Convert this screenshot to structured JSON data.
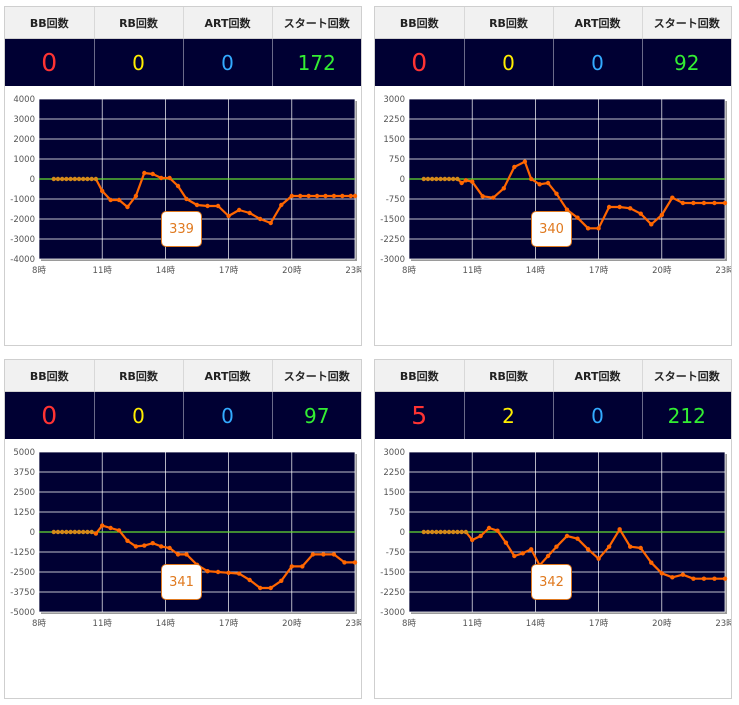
{
  "headers": {
    "bb": "BB回数",
    "rb": "RB回数",
    "art": "ART回数",
    "start": "スタート回数"
  },
  "colors": {
    "bb": "#ff3333",
    "rb": "#ffee00",
    "art": "#33aaff",
    "start": "#33ee33",
    "series_line": "#ff6600",
    "zero_line": "#66dd33",
    "chart_bg": "#000033"
  },
  "x_tick_labels": [
    "8時",
    "11時",
    "14時",
    "17時",
    "20時",
    "23時"
  ],
  "panels": [
    {
      "bb": "0",
      "rb": "0",
      "art": "0",
      "start": "172",
      "machine": "339",
      "chart_data": {
        "type": "line",
        "xlim": [
          8,
          23
        ],
        "ylim": [
          -4000,
          4000
        ],
        "y_ticks": [
          "4000",
          "3000",
          "2000",
          "1000",
          "0",
          "-1000",
          "-2000",
          "-3000",
          "-4000"
        ],
        "x": [
          8.7,
          8.9,
          9.1,
          9.3,
          9.5,
          9.7,
          9.9,
          10.1,
          10.3,
          10.5,
          10.7,
          11.0,
          11.4,
          11.8,
          12.2,
          12.6,
          13.0,
          13.4,
          13.8,
          14.2,
          14.6,
          15.0,
          15.5,
          16.0,
          16.5,
          17.0,
          17.5,
          18.0,
          18.5,
          19.0,
          19.5,
          20.0,
          20.4,
          20.8,
          21.2,
          21.6,
          22.0,
          22.4,
          22.8,
          23.0
        ],
        "y": [
          0,
          0,
          0,
          0,
          0,
          0,
          0,
          0,
          0,
          0,
          0,
          -600,
          -1050,
          -1050,
          -1400,
          -850,
          300,
          250,
          50,
          50,
          -350,
          -1000,
          -1300,
          -1350,
          -1350,
          -1850,
          -1550,
          -1700,
          -2000,
          -2200,
          -1300,
          -850,
          -850,
          -850,
          -850,
          -850,
          -850,
          -850,
          -850,
          -850
        ]
      }
    },
    {
      "bb": "0",
      "rb": "0",
      "art": "0",
      "start": "92",
      "machine": "340",
      "chart_data": {
        "type": "line",
        "xlim": [
          8,
          23
        ],
        "ylim": [
          -3000,
          3000
        ],
        "y_ticks": [
          "3000",
          "2250",
          "1500",
          "750",
          "0",
          "-750",
          "-1500",
          "-2250",
          "-3000"
        ],
        "x": [
          8.7,
          8.9,
          9.1,
          9.3,
          9.5,
          9.7,
          9.9,
          10.1,
          10.3,
          10.5,
          10.7,
          11.0,
          11.5,
          12.0,
          12.5,
          13.0,
          13.5,
          13.8,
          14.2,
          14.6,
          15.0,
          15.5,
          16.0,
          16.5,
          17.0,
          17.5,
          18.0,
          18.5,
          19.0,
          19.5,
          20.0,
          20.5,
          21.0,
          21.5,
          22.0,
          22.5,
          23.0
        ],
        "y": [
          0,
          0,
          0,
          0,
          0,
          0,
          0,
          0,
          0,
          -150,
          -50,
          -100,
          -650,
          -700,
          -350,
          450,
          650,
          0,
          -200,
          -150,
          -550,
          -1150,
          -1450,
          -1850,
          -1850,
          -1050,
          -1050,
          -1100,
          -1300,
          -1700,
          -1350,
          -700,
          -900,
          -900,
          -900,
          -900,
          -900
        ]
      }
    },
    {
      "bb": "0",
      "rb": "0",
      "art": "0",
      "start": "97",
      "machine": "341",
      "chart_data": {
        "type": "line",
        "xlim": [
          8,
          23
        ],
        "ylim": [
          -5000,
          5000
        ],
        "y_ticks": [
          "5000",
          "3750",
          "2500",
          "1250",
          "0",
          "-1250",
          "-2500",
          "-3750",
          "-5000"
        ],
        "x": [
          8.7,
          8.9,
          9.1,
          9.3,
          9.5,
          9.7,
          9.9,
          10.1,
          10.3,
          10.5,
          10.7,
          11.0,
          11.4,
          11.8,
          12.2,
          12.6,
          13.0,
          13.4,
          13.8,
          14.2,
          14.6,
          15.0,
          15.5,
          16.0,
          16.5,
          17.0,
          17.5,
          18.0,
          18.5,
          19.0,
          19.5,
          20.0,
          20.5,
          21.0,
          21.5,
          22.0,
          22.5,
          23.0
        ],
        "y": [
          0,
          0,
          0,
          0,
          0,
          0,
          0,
          0,
          0,
          0,
          -100,
          400,
          250,
          100,
          -550,
          -900,
          -850,
          -700,
          -900,
          -1000,
          -1400,
          -1400,
          -2050,
          -2450,
          -2500,
          -2550,
          -2600,
          -3000,
          -3500,
          -3500,
          -3050,
          -2150,
          -2150,
          -1400,
          -1400,
          -1400,
          -1900,
          -1900
        ]
      }
    },
    {
      "bb": "5",
      "rb": "2",
      "art": "0",
      "start": "212",
      "machine": "342",
      "chart_data": {
        "type": "line",
        "xlim": [
          8,
          23
        ],
        "ylim": [
          -3000,
          3000
        ],
        "y_ticks": [
          "3000",
          "2250",
          "1500",
          "750",
          "0",
          "-750",
          "-1500",
          "-2250",
          "-3000"
        ],
        "x": [
          8.7,
          8.9,
          9.1,
          9.3,
          9.5,
          9.7,
          9.9,
          10.1,
          10.3,
          10.5,
          10.7,
          11.0,
          11.4,
          11.8,
          12.2,
          12.6,
          13.0,
          13.4,
          13.8,
          14.2,
          14.6,
          15.0,
          15.5,
          16.0,
          16.5,
          17.0,
          17.5,
          18.0,
          18.5,
          19.0,
          19.5,
          20.0,
          20.5,
          21.0,
          21.5,
          22.0,
          22.5,
          23.0
        ],
        "y": [
          0,
          0,
          0,
          0,
          0,
          0,
          0,
          0,
          0,
          0,
          0,
          -300,
          -150,
          150,
          50,
          -400,
          -900,
          -800,
          -650,
          -1250,
          -900,
          -550,
          -150,
          -250,
          -650,
          -1000,
          -550,
          100,
          -550,
          -600,
          -1150,
          -1550,
          -1700,
          -1600,
          -1750,
          -1750,
          -1750,
          -1750
        ]
      }
    }
  ]
}
